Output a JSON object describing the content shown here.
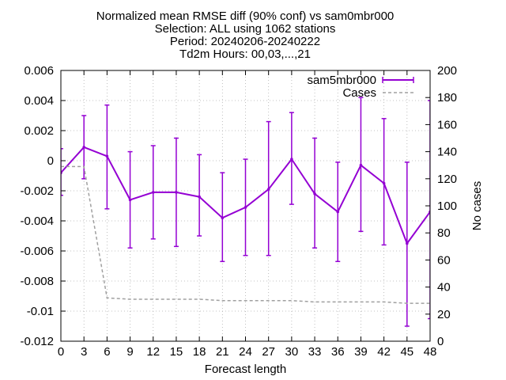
{
  "chart_data": {
    "type": "line",
    "title_lines": [
      "Normalized mean RMSE diff (90% conf) vs sam0mbr000",
      "Selection: ALL using  1062 stations",
      "Period: 20240206-20240222",
      "Td2m   Hours: 00,03,...,21"
    ],
    "xlabel": "Forecast length",
    "ylabel": "",
    "y2label": "No cases",
    "x": [
      0,
      3,
      6,
      9,
      12,
      15,
      18,
      21,
      24,
      27,
      30,
      33,
      36,
      39,
      42,
      45,
      48
    ],
    "xticks": [
      "0",
      "3",
      "6",
      "9",
      "12",
      "15",
      "18",
      "21",
      "24",
      "27",
      "30",
      "33",
      "36",
      "39",
      "42",
      "45",
      "48"
    ],
    "xlim": [
      0,
      48
    ],
    "ylim": [
      -0.012,
      0.006
    ],
    "yticks": [
      "0.006",
      "0.004",
      "0.002",
      "0",
      "-0.002",
      "-0.004",
      "-0.006",
      "-0.008",
      "-0.01",
      "-0.012"
    ],
    "y2lim": [
      0,
      200
    ],
    "y2ticks": [
      "200",
      "180",
      "160",
      "140",
      "120",
      "100",
      "80",
      "60",
      "40",
      "20",
      "0"
    ],
    "series": [
      {
        "name": "sam5mbr000",
        "color": "#9400d3",
        "axis": "left",
        "values": [
          -0.0008,
          0.0009,
          0.0003,
          -0.0026,
          -0.0021,
          -0.0021,
          -0.0024,
          -0.0038,
          -0.0031,
          -0.0019,
          0.0001,
          -0.0022,
          -0.0034,
          -0.0003,
          -0.0015,
          -0.0055,
          -0.0034
        ],
        "err_low": [
          -0.0023,
          -0.0012,
          -0.0032,
          -0.0058,
          -0.0052,
          -0.0057,
          -0.005,
          -0.0067,
          -0.0063,
          -0.0063,
          -0.0029,
          -0.0058,
          -0.0067,
          -0.0047,
          -0.0056,
          -0.011,
          -0.0105
        ],
        "err_high": [
          0.0008,
          0.003,
          0.0037,
          0.0006,
          0.001,
          0.0015,
          0.0004,
          -0.0008,
          0.0001,
          0.0026,
          0.0032,
          0.0015,
          -0.0001,
          0.0042,
          0.0028,
          -0.0001,
          0.004
        ]
      },
      {
        "name": "Cases",
        "color": "#a0a0a0",
        "axis": "right",
        "dashed": true,
        "values": [
          129,
          129,
          32,
          31,
          31,
          31,
          31,
          30,
          30,
          30,
          30,
          29,
          29,
          29,
          29,
          28,
          28
        ]
      }
    ],
    "grid": true,
    "legend_position": "top-right"
  }
}
